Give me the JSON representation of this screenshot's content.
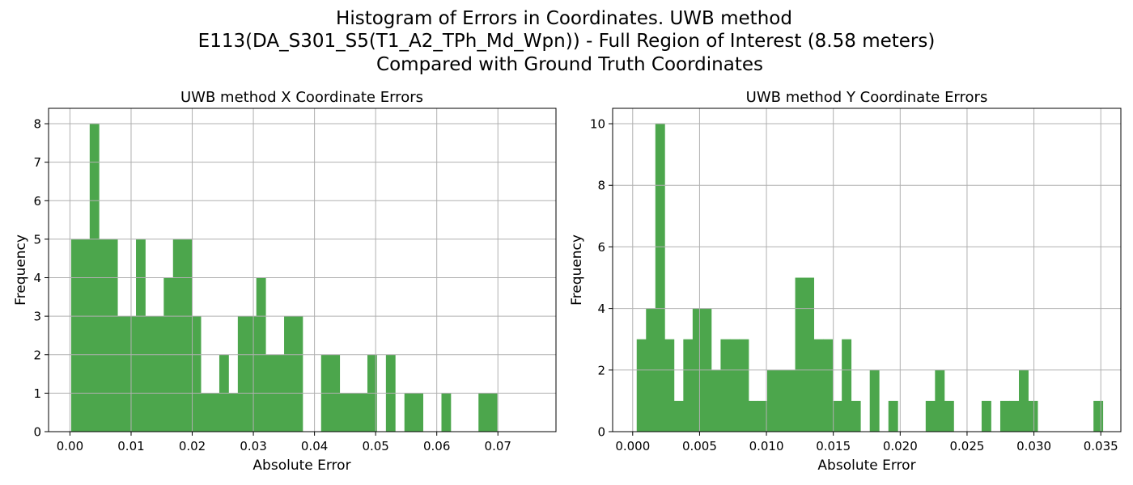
{
  "figure": {
    "title_lines": [
      "Histogram of Errors in Coordinates. UWB method",
      "E113(DA_S301_S5(T1_A2_TPh_Md_Wpn)) - Full Region of Interest (8.58 meters)",
      "Compared with Ground Truth Coordinates"
    ]
  },
  "chart_data": [
    {
      "type": "bar",
      "title": "UWB method X Coordinate Errors",
      "xlabel": "Absolute Error",
      "ylabel": "Frequency",
      "xlim": [
        -0.0035,
        0.0795
      ],
      "ylim": [
        0,
        8.4
      ],
      "xticks": [
        0.0,
        0.01,
        0.02,
        0.03,
        0.04,
        0.05,
        0.06,
        0.07
      ],
      "xtick_labels": [
        "0.00",
        "0.01",
        "0.02",
        "0.03",
        "0.04",
        "0.05",
        "0.06",
        "0.07"
      ],
      "yticks": [
        0,
        1,
        2,
        3,
        4,
        5,
        6,
        7,
        8
      ],
      "ytick_labels": [
        "0",
        "1",
        "2",
        "3",
        "4",
        "5",
        "6",
        "7",
        "8"
      ],
      "grid": true,
      "color": "#4ca64c",
      "bin_start": 0.0002,
      "bin_width": 0.0015142,
      "values": [
        5,
        5,
        8,
        5,
        5,
        3,
        3,
        5,
        3,
        3,
        4,
        5,
        5,
        3,
        1,
        1,
        2,
        1,
        3,
        3,
        4,
        2,
        2,
        3,
        3,
        0,
        0,
        2,
        2,
        1,
        1,
        1,
        2,
        0,
        2,
        0,
        1,
        1,
        0,
        0,
        1,
        0,
        0,
        0,
        1,
        1,
        0,
        0,
        0,
        0,
        0,
        0,
        0,
        0,
        0,
        0,
        0,
        0,
        0,
        0,
        0,
        0,
        0,
        0,
        0,
        0,
        0,
        0,
        0,
        0,
        0,
        0,
        0,
        0,
        0,
        0,
        0,
        0,
        0,
        0,
        0,
        0,
        0,
        0,
        0,
        0,
        0,
        0,
        0,
        0,
        0,
        0,
        0,
        0,
        0,
        0,
        0,
        0,
        0,
        0,
        0,
        0,
        0,
        0,
        0,
        0,
        0,
        0,
        0,
        0,
        0,
        0,
        0,
        0,
        0,
        0,
        0,
        0,
        0,
        0
      ]
    },
    {
      "type": "bar",
      "title": "UWB method Y Coordinate Errors",
      "xlabel": "Absolute Error",
      "ylabel": "Frequency",
      "xlim": [
        -0.0015,
        0.0365
      ],
      "ylim": [
        0,
        10.5
      ],
      "xticks": [
        0.0,
        0.005,
        0.01,
        0.015,
        0.02,
        0.025,
        0.03,
        0.035
      ],
      "xtick_labels": [
        "0.000",
        "0.005",
        "0.010",
        "0.015",
        "0.020",
        "0.025",
        "0.030",
        "0.035"
      ],
      "yticks": [
        0,
        2,
        4,
        6,
        8,
        10
      ],
      "ytick_labels": [
        "0",
        "2",
        "4",
        "6",
        "8",
        "10"
      ],
      "grid": true,
      "color": "#4ca64c",
      "bin_start": 0.0003,
      "bin_width": 0.000697,
      "values": [
        3,
        4,
        10,
        3,
        1,
        3,
        4,
        4,
        2,
        3,
        3,
        3,
        1,
        1,
        2,
        2,
        2,
        5,
        5,
        3,
        3,
        1,
        3,
        1,
        0,
        2,
        0,
        1,
        0,
        0,
        0,
        1,
        2,
        1,
        0,
        0,
        0,
        1,
        0,
        1,
        1,
        2,
        1,
        0,
        0,
        0,
        0,
        0,
        0,
        1
      ]
    }
  ]
}
